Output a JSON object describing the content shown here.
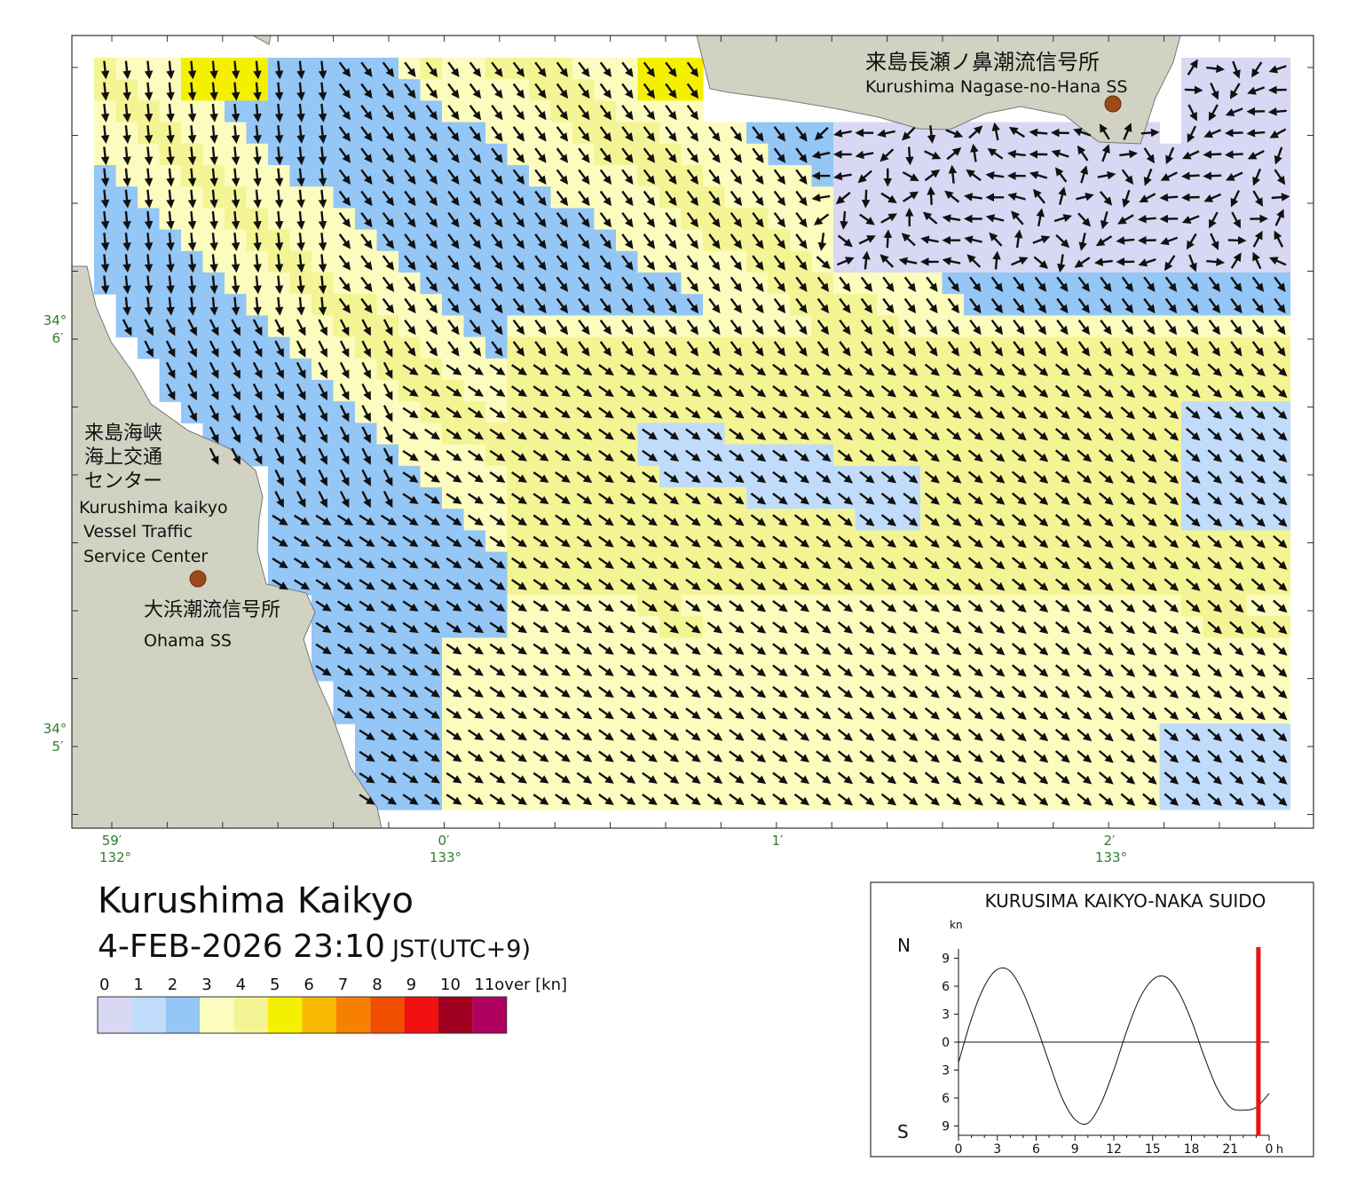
{
  "map": {
    "stations": [
      {
        "name_ja": "来島長瀬ノ鼻潮流信号所",
        "name_en": "Kurushima Nagase-no-Hana SS"
      },
      {
        "name_ja": "大浜潮流信号所",
        "name_en": "Ohama SS"
      }
    ],
    "vts_ja": [
      "来島海峡",
      "海上交通",
      "センター"
    ],
    "vts_en": [
      "Kurushima kaikyo",
      "Vessel Traffic",
      "Service Center"
    ],
    "lat_labels": [
      {
        "deg": "34°",
        "min": "6′"
      },
      {
        "deg": "34°",
        "min": "5′"
      }
    ],
    "lon_labels": [
      {
        "min": "59′",
        "deg": "132°"
      },
      {
        "min": "0′",
        "deg": "133°"
      },
      {
        "min": "1′",
        "deg": ""
      },
      {
        "min": "2′",
        "deg": "133°"
      }
    ],
    "land_color": "#d2d2c3",
    "water_color": "#d8d8f4"
  },
  "header": {
    "title": "Kurushima Kaikyo",
    "datetime": "4-FEB-2026 23:10",
    "timezone": "JST(UTC+9)"
  },
  "legend": {
    "labels": [
      "0",
      "1",
      "2",
      "3",
      "4",
      "5",
      "6",
      "7",
      "8",
      "9",
      "10",
      "11over [kn]"
    ],
    "colors": [
      "#d8d8f4",
      "#c0dcfa",
      "#94c6f6",
      "#fcfcbe",
      "#f4f494",
      "#f4f000",
      "#f8b800",
      "#f88000",
      "#f05000",
      "#f01010",
      "#a00020",
      "#b00060"
    ]
  },
  "chart_data": {
    "type": "line",
    "title": "KURUSIMA KAIKYO-NAKA SUIDO",
    "ylabel": "kn",
    "north_label": "N",
    "south_label": "S",
    "x_unit": "h",
    "x_ticks": [
      "0",
      "3",
      "6",
      "9",
      "12",
      "15",
      "18",
      "21",
      "0"
    ],
    "y_ticks": [
      "9",
      "6",
      "3",
      "0",
      "3",
      "6",
      "9"
    ],
    "x": [
      0,
      1,
      2,
      3,
      4,
      5,
      6,
      7,
      8,
      9,
      10,
      11,
      12,
      13,
      14,
      15,
      16,
      17,
      18,
      19,
      20,
      21,
      22,
      23,
      24
    ],
    "values": [
      -2.2,
      2.5,
      6.0,
      7.8,
      7.6,
      5.3,
      1.8,
      -2.2,
      -6.0,
      -8.3,
      -8.7,
      -6.6,
      -3.0,
      1.2,
      4.7,
      6.7,
      7.0,
      5.4,
      2.3,
      -1.6,
      -5.0,
      -7.0,
      -7.3,
      -7.0,
      -5.5
    ],
    "ylim": [
      -10,
      10
    ],
    "current_time": 23.17,
    "current_color": "#ee1111"
  }
}
